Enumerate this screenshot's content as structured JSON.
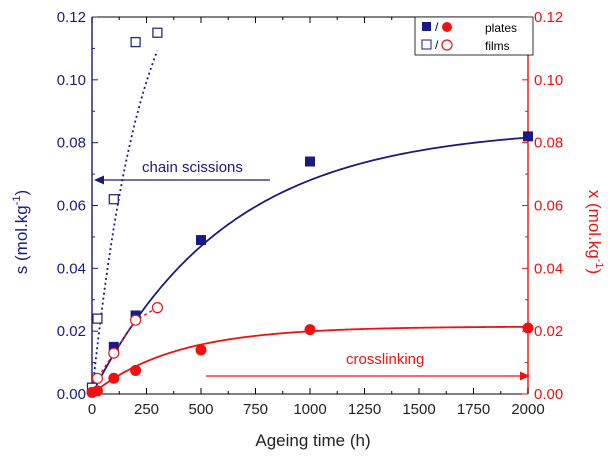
{
  "chart_data": {
    "type": "scatter",
    "xlabel": "Ageing time (h)",
    "ylabel_left": "s (mol.kg",
    "ylabel_left_sup": "-1",
    "ylabel_left_tail": ")",
    "ylabel_right": "x (mol.kg",
    "ylabel_right_sup": "-1",
    "ylabel_right_tail": ")",
    "xlim": [
      0,
      2000
    ],
    "ylim_left": [
      0,
      0.12
    ],
    "ylim_right": [
      0,
      0.12
    ],
    "x_ticks": [
      "0",
      "250",
      "500",
      "750",
      "1000",
      "1250",
      "1500",
      "1750",
      "2000"
    ],
    "y_ticks": [
      "0.00",
      "0.02",
      "0.04",
      "0.06",
      "0.08",
      "0.10",
      "0.12"
    ],
    "legend": [
      {
        "separator": "/",
        "label": "plates"
      },
      {
        "separator": "/",
        "label": "films"
      }
    ],
    "annotations": {
      "chain_scissions": "chain scissions",
      "crosslinking": "crosslinking"
    },
    "colors": {
      "blue": "#1a1a80",
      "red": "#ee1111"
    },
    "series": [
      {
        "name": "plates",
        "variable": "s",
        "axis": "left",
        "marker": "filled-square",
        "color": "#1a1a80",
        "x": [
          0,
          100,
          200,
          500,
          1000,
          2000
        ],
        "y": [
          0.002,
          0.015,
          0.025,
          0.049,
          0.074,
          0.082
        ],
        "fit": {
          "form": "a*(1-exp(-t/tau))",
          "a": 0.085,
          "tau": 620
        }
      },
      {
        "name": "films",
        "variable": "s",
        "axis": "left",
        "marker": "open-square",
        "color": "#1a1a80",
        "x": [
          0,
          25,
          100,
          200,
          300
        ],
        "y": [
          0.002,
          0.024,
          0.062,
          0.112,
          0.115
        ],
        "fit": {
          "form": "a*(1-exp(-t/tau))",
          "a": 0.15,
          "tau": 230
        }
      },
      {
        "name": "plates",
        "variable": "x",
        "axis": "right",
        "marker": "filled-circle",
        "color": "#ee1111",
        "x": [
          0,
          25,
          100,
          200,
          500,
          1000,
          2000
        ],
        "y": [
          0.0005,
          0.001,
          0.005,
          0.0075,
          0.014,
          0.0205,
          0.021
        ],
        "fit": {
          "form": "a*(1-exp(-t/tau))",
          "a": 0.0215,
          "tau": 380
        }
      },
      {
        "name": "films",
        "variable": "x",
        "axis": "right",
        "marker": "open-circle",
        "color": "#ee1111",
        "x": [
          25,
          100,
          200,
          300
        ],
        "y": [
          0.005,
          0.013,
          0.0235,
          0.0275
        ]
      }
    ]
  }
}
